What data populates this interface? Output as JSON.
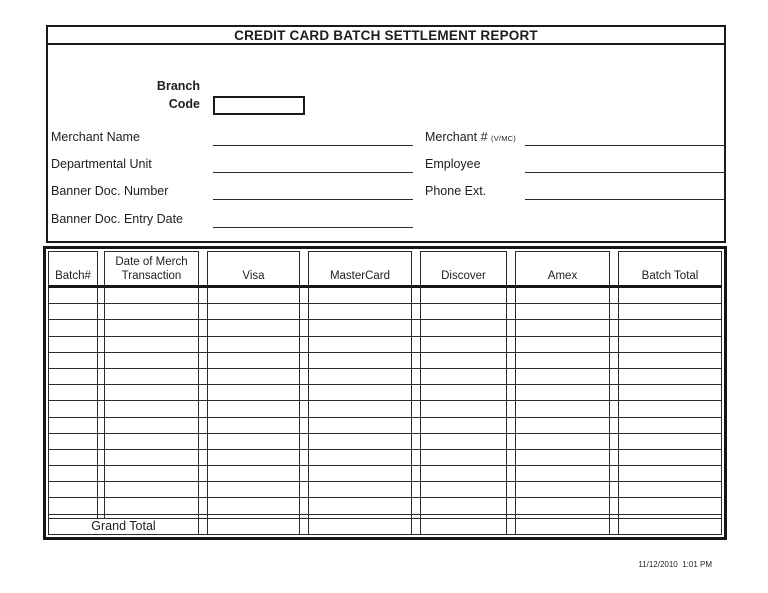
{
  "page": {
    "title": "CREDIT CARD BATCH SETTLEMENT REPORT",
    "footer_timestamp": "11/12/2010  1:01 PM"
  },
  "form": {
    "branch_code": {
      "label_line1": "Branch",
      "label_line2": "Code",
      "value": ""
    },
    "left_fields": [
      {
        "label": "Merchant Name",
        "value": ""
      },
      {
        "label": "Departmental Unit",
        "value": ""
      },
      {
        "label": "Banner Doc. Number",
        "value": ""
      },
      {
        "label": "Banner Doc. Entry Date",
        "value": ""
      }
    ],
    "right_fields": [
      {
        "label": "Merchant #",
        "label_suffix": "(V/MC)",
        "value": ""
      },
      {
        "label": "Employee",
        "label_suffix": "",
        "value": ""
      },
      {
        "label": "Phone Ext.",
        "label_suffix": "",
        "value": ""
      }
    ]
  },
  "table": {
    "headers": [
      {
        "lines": [
          "Batch#"
        ]
      },
      {
        "lines": [
          "Date of Merch",
          "Transaction"
        ]
      },
      {
        "lines": [
          "Visa"
        ]
      },
      {
        "lines": [
          "MasterCard"
        ]
      },
      {
        "lines": [
          "Discover"
        ]
      },
      {
        "lines": [
          "Amex"
        ]
      },
      {
        "lines": [
          "Batch Total"
        ]
      }
    ],
    "rows": [
      [
        "",
        "",
        "",
        "",
        "",
        "",
        ""
      ],
      [
        "",
        "",
        "",
        "",
        "",
        "",
        ""
      ],
      [
        "",
        "",
        "",
        "",
        "",
        "",
        ""
      ],
      [
        "",
        "",
        "",
        "",
        "",
        "",
        ""
      ],
      [
        "",
        "",
        "",
        "",
        "",
        "",
        ""
      ],
      [
        "",
        "",
        "",
        "",
        "",
        "",
        ""
      ],
      [
        "",
        "",
        "",
        "",
        "",
        "",
        ""
      ],
      [
        "",
        "",
        "",
        "",
        "",
        "",
        ""
      ],
      [
        "",
        "",
        "",
        "",
        "",
        "",
        ""
      ],
      [
        "",
        "",
        "",
        "",
        "",
        "",
        ""
      ],
      [
        "",
        "",
        "",
        "",
        "",
        "",
        ""
      ],
      [
        "",
        "",
        "",
        "",
        "",
        "",
        ""
      ],
      [
        "",
        "",
        "",
        "",
        "",
        "",
        ""
      ],
      [
        "",
        "",
        "",
        "",
        "",
        "",
        ""
      ]
    ],
    "grand_total": {
      "label": "Grand Total",
      "values": [
        "",
        "",
        "",
        "",
        ""
      ]
    }
  }
}
